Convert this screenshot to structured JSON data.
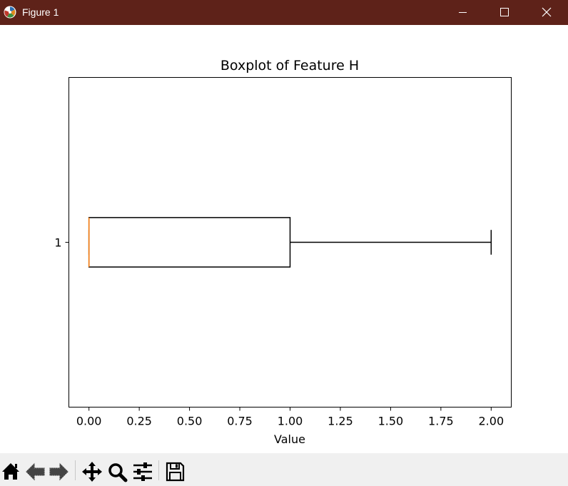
{
  "window": {
    "title": "Figure 1",
    "icons": [
      "matplotlib-logo-icon",
      "minimize-icon",
      "maximize-icon",
      "close-icon"
    ],
    "titlebar_color": "#5e2219"
  },
  "chart_data": {
    "type": "boxplot",
    "orientation": "horizontal",
    "title": "Boxplot of Feature H",
    "xlabel": "Value",
    "ylabel": "",
    "xlim": [
      -0.1,
      2.1
    ],
    "xticks": [
      "0.00",
      "0.25",
      "0.50",
      "0.75",
      "1.00",
      "1.25",
      "1.50",
      "1.75",
      "2.00"
    ],
    "yticks": [
      "1"
    ],
    "grid": false,
    "boxes": [
      {
        "label": "1",
        "whisker_low": 0.0,
        "q1": 0.0,
        "median": 0.0,
        "q3": 1.0,
        "whisker_high": 2.0
      }
    ],
    "colors": {
      "box": "#000000",
      "median": "#ff7f0e"
    }
  },
  "toolbar": {
    "buttons": [
      "home-icon",
      "back-icon",
      "forward-icon",
      "pan-icon",
      "zoom-icon",
      "configure-subplots-icon",
      "save-icon"
    ]
  }
}
